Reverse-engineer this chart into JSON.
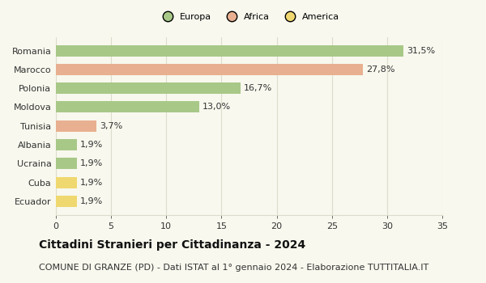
{
  "categories": [
    "Romania",
    "Marocco",
    "Polonia",
    "Moldova",
    "Tunisia",
    "Albania",
    "Ucraina",
    "Cuba",
    "Ecuador"
  ],
  "values": [
    31.5,
    27.8,
    16.7,
    13.0,
    3.7,
    1.9,
    1.9,
    1.9,
    1.9
  ],
  "labels": [
    "31,5%",
    "27,8%",
    "16,7%",
    "13,0%",
    "3,7%",
    "1,9%",
    "1,9%",
    "1,9%",
    "1,9%"
  ],
  "colors": [
    "#a8c888",
    "#e8b090",
    "#a8c888",
    "#a8c888",
    "#e8b090",
    "#a8c888",
    "#a8c888",
    "#f0d870",
    "#f0d870"
  ],
  "legend_items": [
    {
      "label": "Europa",
      "color": "#a8c888"
    },
    {
      "label": "Africa",
      "color": "#e8b090"
    },
    {
      "label": "America",
      "color": "#f0d870"
    }
  ],
  "xlim": [
    0,
    35
  ],
  "xticks": [
    0,
    5,
    10,
    15,
    20,
    25,
    30,
    35
  ],
  "title": "Cittadini Stranieri per Cittadinanza - 2024",
  "subtitle": "COMUNE DI GRANZE (PD) - Dati ISTAT al 1° gennaio 2024 - Elaborazione TUTTITALIA.IT",
  "bg_color": "#f8f8ee",
  "grid_color": "#ddddcc",
  "title_fontsize": 10,
  "subtitle_fontsize": 8,
  "label_fontsize": 8,
  "tick_fontsize": 8,
  "bar_height": 0.6
}
